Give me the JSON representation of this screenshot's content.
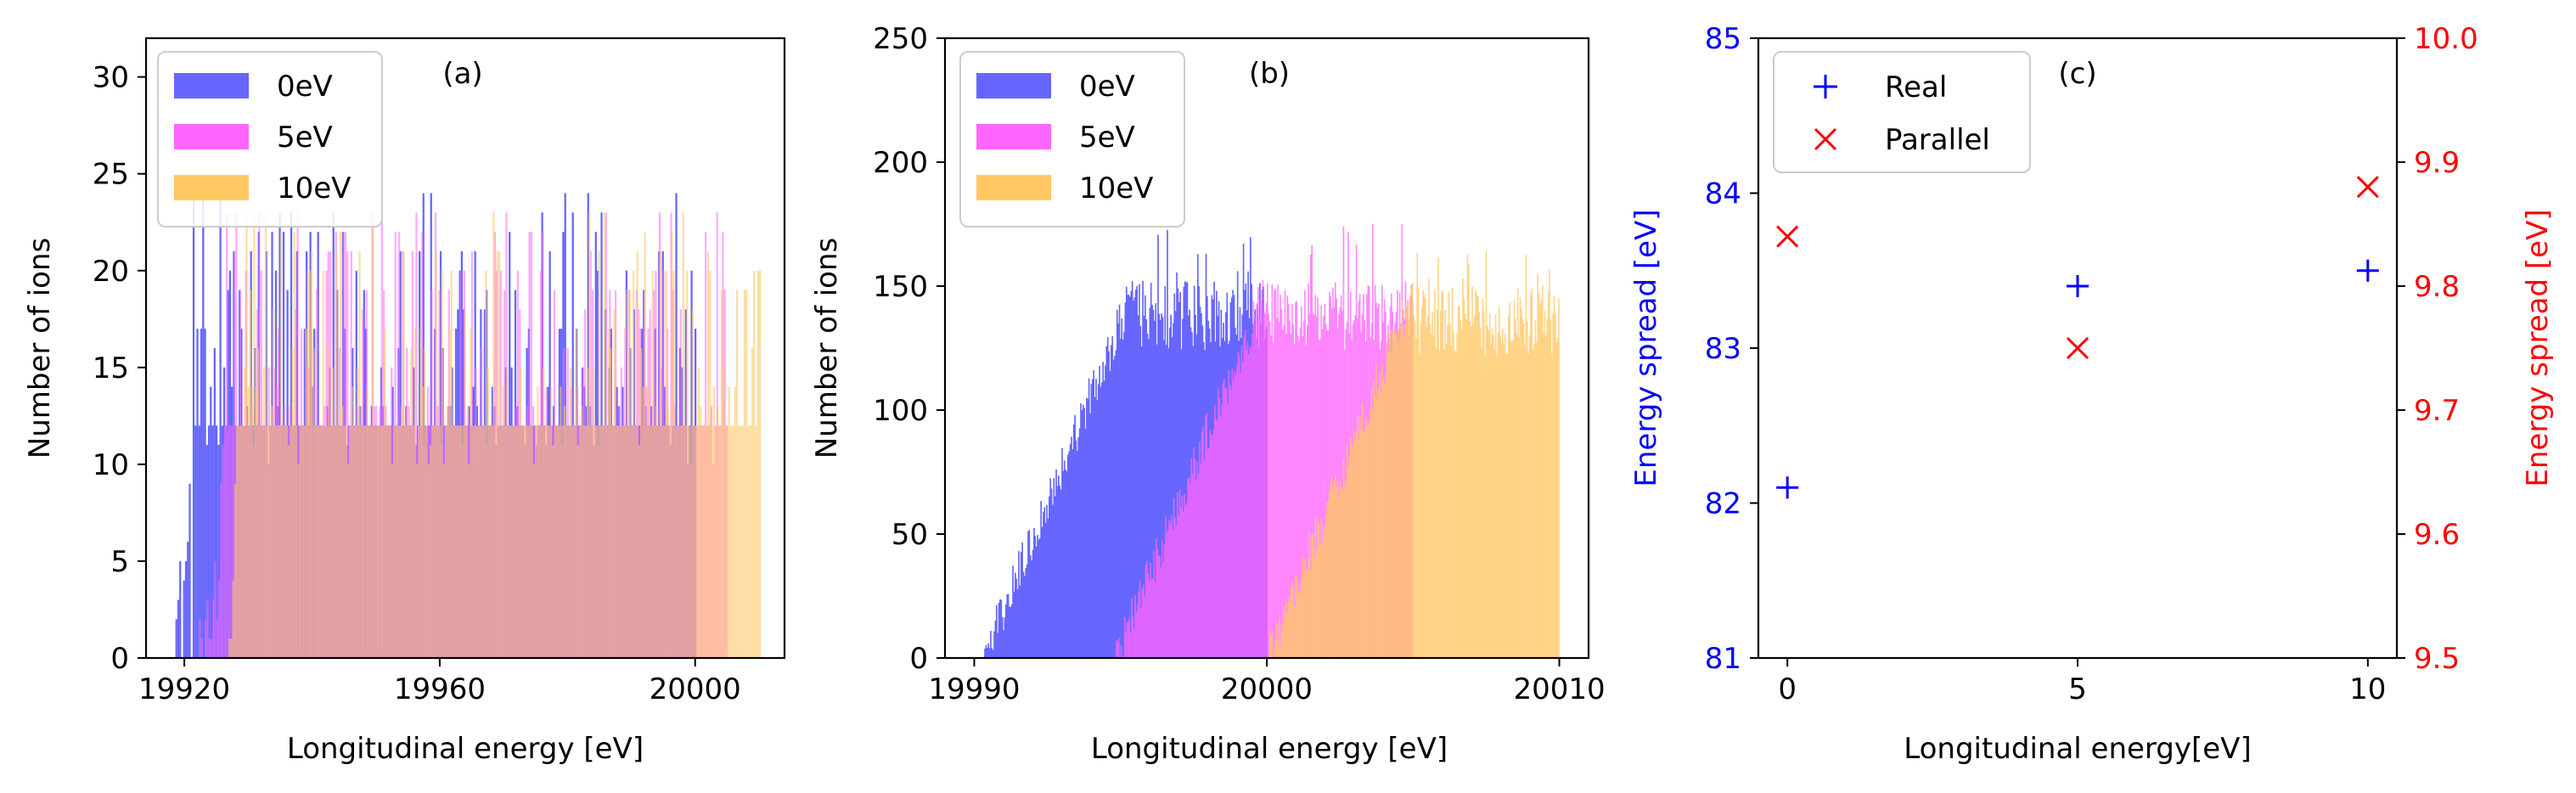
{
  "figure": {
    "charts": [
      {
        "panel_label": "(a)",
        "xlabel": "Longitudinal energy [eV]",
        "ylabel": "Number of ions",
        "xticks": [
          "19920",
          "19960",
          "20000"
        ],
        "yticks": [
          "0",
          "5",
          "10",
          "15",
          "20",
          "25",
          "30"
        ]
      },
      {
        "panel_label": "(b)",
        "xlabel": "Longitudinal energy [eV]",
        "ylabel": "Number of ions",
        "xticks": [
          "19990",
          "20000",
          "20010"
        ],
        "yticks": [
          "0",
          "50",
          "100",
          "150",
          "200",
          "250"
        ]
      },
      {
        "panel_label": "(c)",
        "xlabel": "Longitudinal energy[eV]",
        "ylabel_left": "Energy spread [eV]",
        "ylabel_right": "Energy spread [eV]",
        "xticks": [
          "0",
          "5",
          "10"
        ],
        "yticks_left": [
          "81",
          "82",
          "83",
          "84",
          "85"
        ],
        "yticks_right": [
          "9.5",
          "9.6",
          "9.7",
          "9.8",
          "9.9",
          "10.0"
        ]
      }
    ]
  },
  "chart_data": [
    {
      "type": "bar",
      "subtype": "overlaid-histogram",
      "panel": "(a)",
      "xlabel": "Longitudinal energy [eV]",
      "ylabel": "Number of ions",
      "xlim": [
        19914,
        20014
      ],
      "ylim": [
        0,
        32
      ],
      "legend_position": "upper-left",
      "series": [
        {
          "name": "0eV",
          "color": "#6666ff",
          "alpha": 1.0,
          "x_start": 19918,
          "x_end": 20000,
          "bins_per_ev": 3.4,
          "ramp_end": 19921,
          "plateau_counts": [
            12
          ],
          "spikes_max": 25
        },
        {
          "name": "5eV",
          "color": "#ff66ff",
          "alpha": 0.55,
          "x_start": 19922,
          "x_end": 20005,
          "bins_per_ev": 3.4,
          "ramp_end": 19926,
          "plateau_counts": [
            12
          ],
          "spikes_max": 24
        },
        {
          "name": "10eV",
          "color": "#ffc864",
          "alpha": 0.6,
          "x_start": 19926,
          "x_end": 20010,
          "bins_per_ev": 3.4,
          "ramp_end": 19928,
          "plateau_counts": [
            12
          ],
          "spikes_max": 24
        }
      ]
    },
    {
      "type": "bar",
      "subtype": "overlaid-histogram",
      "panel": "(b)",
      "xlabel": "Longitudinal energy [eV]",
      "ylabel": "Number of ions",
      "xlim": [
        19989,
        20011
      ],
      "ylim": [
        0,
        250
      ],
      "legend_position": "upper-left",
      "series": [
        {
          "name": "0eV",
          "color": "#6666ff",
          "alpha": 1.0,
          "x_start": 19990.3,
          "x_end": 20000,
          "ramp_end": 19995.5,
          "ramp_start_count": 0,
          "plateau_count": 150,
          "peak": 173
        },
        {
          "name": "5eV",
          "color": "#ff66ff",
          "alpha": 0.75,
          "x_start": 19994.8,
          "x_end": 20005,
          "ramp_end": 20000,
          "ramp_start_count": 0,
          "plateau_count": 150,
          "peak": 178
        },
        {
          "name": "10eV",
          "color": "#ffc864",
          "alpha": 0.75,
          "x_start": 20000,
          "x_end": 20010,
          "ramp_end": 20005,
          "ramp_start_count": 0,
          "plateau_count": 148,
          "peak": 168
        }
      ]
    },
    {
      "type": "scatter",
      "panel": "(c)",
      "xlabel": "Longitudinal energy[eV]",
      "ylabel_left": "Energy spread [eV]",
      "ylabel_right": "Energy spread [eV]",
      "xlim": [
        -0.5,
        10.5
      ],
      "ylim_left": [
        81,
        85
      ],
      "ylim_right": [
        9.5,
        10.0
      ],
      "legend_position": "upper-left",
      "series": [
        {
          "name": "Real",
          "marker": "+",
          "color": "#0000ff",
          "axis": "left",
          "x": [
            0,
            5,
            10
          ],
          "y": [
            82.1,
            83.4,
            83.5
          ]
        },
        {
          "name": "Parallel",
          "marker": "x",
          "color": "#ff0000",
          "axis": "right",
          "x": [
            0,
            5,
            10
          ],
          "y": [
            9.84,
            9.75,
            9.88
          ]
        }
      ]
    }
  ]
}
